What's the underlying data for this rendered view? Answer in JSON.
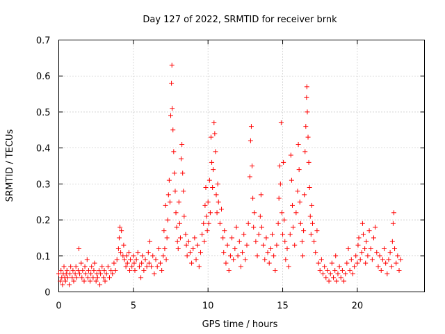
{
  "chart_data": {
    "type": "scatter",
    "title": "Day 127 of 2022, SRMTID for receiver brnk",
    "xlabel": "GPS time / hours",
    "ylabel": "SRMTID / TECUs",
    "xlim": [
      0,
      24.5
    ],
    "ylim": [
      0,
      0.7
    ],
    "xticks": [
      0,
      5,
      10,
      15,
      20
    ],
    "xtick_labels": [
      "0",
      "5",
      "10",
      "15",
      "20"
    ],
    "yticks": [
      0,
      0.1,
      0.2,
      0.3,
      0.4,
      0.5,
      0.6,
      0.7
    ],
    "ytick_labels": [
      "0",
      "0.1",
      "0.2",
      "0.3",
      "0.4",
      "0.5",
      "0.6",
      "0.7"
    ],
    "grid": true,
    "marker": "+",
    "series": [
      {
        "name": "SRMTID",
        "color": "#ff0000",
        "points": [
          [
            0.0,
            0.05
          ],
          [
            0.1,
            0.03
          ],
          [
            0.15,
            0.06
          ],
          [
            0.2,
            0.04
          ],
          [
            0.25,
            0.02
          ],
          [
            0.3,
            0.05
          ],
          [
            0.35,
            0.07
          ],
          [
            0.4,
            0.04
          ],
          [
            0.45,
            0.03
          ],
          [
            0.5,
            0.05
          ],
          [
            0.55,
            0.06
          ],
          [
            0.6,
            0.04
          ],
          [
            0.7,
            0.02
          ],
          [
            0.75,
            0.05
          ],
          [
            0.8,
            0.07
          ],
          [
            0.9,
            0.04
          ],
          [
            0.95,
            0.06
          ],
          [
            1.0,
            0.03
          ],
          [
            1.1,
            0.05
          ],
          [
            1.15,
            0.07
          ],
          [
            1.2,
            0.04
          ],
          [
            1.3,
            0.06
          ],
          [
            1.35,
            0.12
          ],
          [
            1.4,
            0.05
          ],
          [
            1.5,
            0.08
          ],
          [
            1.55,
            0.04
          ],
          [
            1.6,
            0.06
          ],
          [
            1.7,
            0.03
          ],
          [
            1.75,
            0.07
          ],
          [
            1.8,
            0.05
          ],
          [
            1.9,
            0.09
          ],
          [
            1.95,
            0.04
          ],
          [
            2.0,
            0.06
          ],
          [
            2.1,
            0.03
          ],
          [
            2.15,
            0.05
          ],
          [
            2.2,
            0.07
          ],
          [
            2.3,
            0.04
          ],
          [
            2.35,
            0.06
          ],
          [
            2.4,
            0.08
          ],
          [
            2.5,
            0.03
          ],
          [
            2.55,
            0.05
          ],
          [
            2.6,
            0.04
          ],
          [
            2.7,
            0.06
          ],
          [
            2.75,
            0.02
          ],
          [
            2.8,
            0.05
          ],
          [
            2.9,
            0.07
          ],
          [
            3.0,
            0.04
          ],
          [
            3.05,
            0.06
          ],
          [
            3.1,
            0.03
          ],
          [
            3.2,
            0.05
          ],
          [
            3.3,
            0.07
          ],
          [
            3.4,
            0.04
          ],
          [
            3.5,
            0.06
          ],
          [
            3.6,
            0.05
          ],
          [
            3.7,
            0.08
          ],
          [
            3.8,
            0.06
          ],
          [
            3.9,
            0.09
          ],
          [
            4.0,
            0.12
          ],
          [
            4.05,
            0.15
          ],
          [
            4.1,
            0.18
          ],
          [
            4.15,
            0.11
          ],
          [
            4.2,
            0.17
          ],
          [
            4.3,
            0.1
          ],
          [
            4.35,
            0.13
          ],
          [
            4.4,
            0.09
          ],
          [
            4.5,
            0.07
          ],
          [
            4.55,
            0.1
          ],
          [
            4.6,
            0.08
          ],
          [
            4.7,
            0.11
          ],
          [
            4.75,
            0.06
          ],
          [
            4.8,
            0.09
          ],
          [
            4.9,
            0.07
          ],
          [
            5.0,
            0.1
          ],
          [
            5.05,
            0.08
          ],
          [
            5.1,
            0.06
          ],
          [
            5.2,
            0.09
          ],
          [
            5.3,
            0.11
          ],
          [
            5.4,
            0.07
          ],
          [
            5.5,
            0.04
          ],
          [
            5.55,
            0.08
          ],
          [
            5.6,
            0.1
          ],
          [
            5.7,
            0.06
          ],
          [
            5.8,
            0.09
          ],
          [
            5.9,
            0.07
          ],
          [
            6.0,
            0.11
          ],
          [
            6.05,
            0.08
          ],
          [
            6.1,
            0.14
          ],
          [
            6.2,
            0.07
          ],
          [
            6.3,
            0.1
          ],
          [
            6.4,
            0.05
          ],
          [
            6.5,
            0.09
          ],
          [
            6.6,
            0.07
          ],
          [
            6.7,
            0.12
          ],
          [
            6.8,
            0.08
          ],
          [
            6.9,
            0.06
          ],
          [
            7.0,
            0.1
          ],
          [
            7.05,
            0.17
          ],
          [
            7.1,
            0.12
          ],
          [
            7.15,
            0.24
          ],
          [
            7.2,
            0.09
          ],
          [
            7.25,
            0.15
          ],
          [
            7.3,
            0.2
          ],
          [
            7.35,
            0.27
          ],
          [
            7.4,
            0.31
          ],
          [
            7.45,
            0.25
          ],
          [
            7.5,
            0.49
          ],
          [
            7.55,
            0.58
          ],
          [
            7.58,
            0.63
          ],
          [
            7.6,
            0.51
          ],
          [
            7.65,
            0.45
          ],
          [
            7.7,
            0.39
          ],
          [
            7.75,
            0.33
          ],
          [
            7.8,
            0.28
          ],
          [
            7.85,
            0.22
          ],
          [
            7.9,
            0.18
          ],
          [
            7.95,
            0.14
          ],
          [
            8.0,
            0.12
          ],
          [
            8.05,
            0.25
          ],
          [
            8.1,
            0.19
          ],
          [
            8.15,
            0.15
          ],
          [
            8.2,
            0.37
          ],
          [
            8.25,
            0.41
          ],
          [
            8.3,
            0.33
          ],
          [
            8.35,
            0.28
          ],
          [
            8.4,
            0.21
          ],
          [
            8.5,
            0.16
          ],
          [
            8.55,
            0.13
          ],
          [
            8.6,
            0.1
          ],
          [
            8.7,
            0.14
          ],
          [
            8.8,
            0.11
          ],
          [
            8.9,
            0.08
          ],
          [
            9.0,
            0.12
          ],
          [
            9.1,
            0.15
          ],
          [
            9.2,
            0.09
          ],
          [
            9.3,
            0.13
          ],
          [
            9.4,
            0.07
          ],
          [
            9.5,
            0.11
          ],
          [
            9.6,
            0.16
          ],
          [
            9.7,
            0.19
          ],
          [
            9.75,
            0.14
          ],
          [
            9.8,
            0.24
          ],
          [
            9.85,
            0.29
          ],
          [
            9.9,
            0.21
          ],
          [
            9.95,
            0.17
          ],
          [
            10.0,
            0.25
          ],
          [
            10.05,
            0.19
          ],
          [
            10.1,
            0.31
          ],
          [
            10.15,
            0.22
          ],
          [
            10.2,
            0.43
          ],
          [
            10.25,
            0.36
          ],
          [
            10.3,
            0.29
          ],
          [
            10.35,
            0.34
          ],
          [
            10.4,
            0.47
          ],
          [
            10.45,
            0.44
          ],
          [
            10.5,
            0.39
          ],
          [
            10.55,
            0.27
          ],
          [
            10.6,
            0.22
          ],
          [
            10.65,
            0.3
          ],
          [
            10.7,
            0.25
          ],
          [
            10.8,
            0.19
          ],
          [
            10.9,
            0.23
          ],
          [
            11.0,
            0.15
          ],
          [
            11.05,
            0.11
          ],
          [
            11.1,
            0.17
          ],
          [
            11.2,
            0.08
          ],
          [
            11.3,
            0.13
          ],
          [
            11.4,
            0.06
          ],
          [
            11.5,
            0.1
          ],
          [
            11.6,
            0.15
          ],
          [
            11.7,
            0.09
          ],
          [
            11.8,
            0.12
          ],
          [
            11.9,
            0.18
          ],
          [
            12.0,
            0.1
          ],
          [
            12.1,
            0.14
          ],
          [
            12.2,
            0.07
          ],
          [
            12.3,
            0.11
          ],
          [
            12.4,
            0.16
          ],
          [
            12.5,
            0.09
          ],
          [
            12.6,
            0.13
          ],
          [
            12.7,
            0.19
          ],
          [
            12.8,
            0.32
          ],
          [
            12.85,
            0.42
          ],
          [
            12.9,
            0.46
          ],
          [
            12.95,
            0.35
          ],
          [
            13.0,
            0.26
          ],
          [
            13.05,
            0.18
          ],
          [
            13.1,
            0.22
          ],
          [
            13.2,
            0.14
          ],
          [
            13.3,
            0.1
          ],
          [
            13.4,
            0.16
          ],
          [
            13.5,
            0.21
          ],
          [
            13.55,
            0.27
          ],
          [
            13.6,
            0.18
          ],
          [
            13.7,
            0.13
          ],
          [
            13.8,
            0.09
          ],
          [
            13.9,
            0.15
          ],
          [
            14.0,
            0.11
          ],
          [
            14.1,
            0.08
          ],
          [
            14.2,
            0.12
          ],
          [
            14.3,
            0.16
          ],
          [
            14.4,
            0.1
          ],
          [
            14.5,
            0.06
          ],
          [
            14.6,
            0.13
          ],
          [
            14.7,
            0.19
          ],
          [
            14.75,
            0.26
          ],
          [
            14.8,
            0.35
          ],
          [
            14.85,
            0.3
          ],
          [
            14.9,
            0.47
          ],
          [
            14.95,
            0.22
          ],
          [
            15.0,
            0.16
          ],
          [
            15.05,
            0.36
          ],
          [
            15.1,
            0.2
          ],
          [
            15.15,
            0.14
          ],
          [
            15.2,
            0.09
          ],
          [
            15.3,
            0.12
          ],
          [
            15.4,
            0.07
          ],
          [
            15.5,
            0.16
          ],
          [
            15.55,
            0.38
          ],
          [
            15.6,
            0.31
          ],
          [
            15.65,
            0.24
          ],
          [
            15.7,
            0.18
          ],
          [
            15.8,
            0.13
          ],
          [
            15.9,
            0.22
          ],
          [
            16.0,
            0.28
          ],
          [
            16.05,
            0.41
          ],
          [
            16.1,
            0.34
          ],
          [
            16.15,
            0.25
          ],
          [
            16.2,
            0.19
          ],
          [
            16.3,
            0.14
          ],
          [
            16.35,
            0.1
          ],
          [
            16.4,
            0.17
          ],
          [
            16.45,
            0.27
          ],
          [
            16.5,
            0.39
          ],
          [
            16.55,
            0.46
          ],
          [
            16.6,
            0.54
          ],
          [
            16.62,
            0.57
          ],
          [
            16.65,
            0.5
          ],
          [
            16.7,
            0.43
          ],
          [
            16.75,
            0.36
          ],
          [
            16.8,
            0.29
          ],
          [
            16.85,
            0.21
          ],
          [
            16.9,
            0.16
          ],
          [
            16.95,
            0.24
          ],
          [
            17.0,
            0.19
          ],
          [
            17.1,
            0.14
          ],
          [
            17.2,
            0.11
          ],
          [
            17.3,
            0.17
          ],
          [
            17.4,
            0.08
          ],
          [
            17.5,
            0.06
          ],
          [
            17.6,
            0.09
          ],
          [
            17.7,
            0.05
          ],
          [
            17.8,
            0.07
          ],
          [
            17.9,
            0.04
          ],
          [
            18.0,
            0.06
          ],
          [
            18.1,
            0.03
          ],
          [
            18.2,
            0.05
          ],
          [
            18.3,
            0.08
          ],
          [
            18.4,
            0.04
          ],
          [
            18.5,
            0.06
          ],
          [
            18.55,
            0.1
          ],
          [
            18.6,
            0.03
          ],
          [
            18.7,
            0.05
          ],
          [
            18.8,
            0.07
          ],
          [
            18.9,
            0.04
          ],
          [
            19.0,
            0.06
          ],
          [
            19.1,
            0.03
          ],
          [
            19.2,
            0.05
          ],
          [
            19.3,
            0.08
          ],
          [
            19.4,
            0.12
          ],
          [
            19.5,
            0.06
          ],
          [
            19.6,
            0.09
          ],
          [
            19.7,
            0.05
          ],
          [
            19.8,
            0.07
          ],
          [
            19.9,
            0.1
          ],
          [
            20.0,
            0.08
          ],
          [
            20.05,
            0.13
          ],
          [
            20.1,
            0.15
          ],
          [
            20.2,
            0.09
          ],
          [
            20.3,
            0.11
          ],
          [
            20.35,
            0.19
          ],
          [
            20.4,
            0.16
          ],
          [
            20.5,
            0.12
          ],
          [
            20.55,
            0.08
          ],
          [
            20.6,
            0.14
          ],
          [
            20.7,
            0.1
          ],
          [
            20.8,
            0.17
          ],
          [
            20.9,
            0.12
          ],
          [
            21.0,
            0.09
          ],
          [
            21.1,
            0.15
          ],
          [
            21.2,
            0.18
          ],
          [
            21.3,
            0.11
          ],
          [
            21.4,
            0.07
          ],
          [
            21.5,
            0.1
          ],
          [
            21.6,
            0.06
          ],
          [
            21.7,
            0.09
          ],
          [
            21.8,
            0.12
          ],
          [
            21.9,
            0.08
          ],
          [
            22.0,
            0.05
          ],
          [
            22.1,
            0.09
          ],
          [
            22.2,
            0.11
          ],
          [
            22.3,
            0.07
          ],
          [
            22.35,
            0.14
          ],
          [
            22.4,
            0.19
          ],
          [
            22.45,
            0.22
          ],
          [
            22.5,
            0.12
          ],
          [
            22.6,
            0.08
          ],
          [
            22.7,
            0.1
          ],
          [
            22.8,
            0.06
          ],
          [
            22.9,
            0.09
          ]
        ]
      }
    ]
  }
}
